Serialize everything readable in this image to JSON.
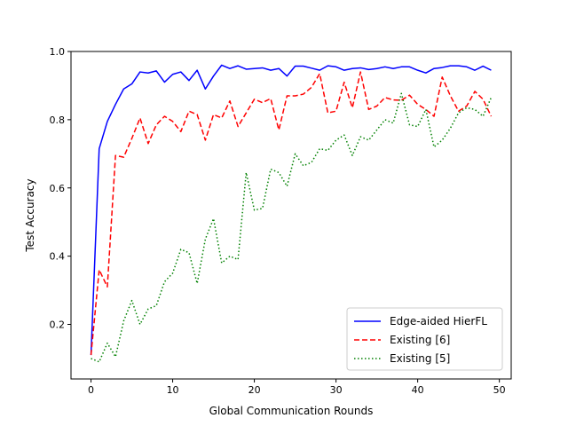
{
  "chart_data": {
    "type": "line",
    "title": "",
    "xlabel": "Global Communication Rounds",
    "ylabel": "Test Accuracy",
    "xlim": [
      -2.45,
      51.45
    ],
    "ylim": [
      0.04,
      1.0
    ],
    "xticks": [
      0,
      10,
      20,
      30,
      40,
      50
    ],
    "yticks": [
      0.2,
      0.4,
      0.6,
      0.8,
      1.0
    ],
    "xtick_labels": [
      "0",
      "10",
      "20",
      "30",
      "40",
      "50"
    ],
    "ytick_labels": [
      "0.2",
      "0.4",
      "0.6",
      "0.8",
      "1.0"
    ],
    "grid": false,
    "legend_position": "lower-right",
    "x": [
      0,
      1,
      2,
      3,
      4,
      5,
      6,
      7,
      8,
      9,
      10,
      11,
      12,
      13,
      14,
      15,
      16,
      17,
      18,
      19,
      20,
      21,
      22,
      23,
      24,
      25,
      26,
      27,
      28,
      29,
      30,
      31,
      32,
      33,
      34,
      35,
      36,
      37,
      38,
      39,
      40,
      41,
      42,
      43,
      44,
      45,
      46,
      47,
      48,
      49
    ],
    "series": [
      {
        "name": "Edge-aided HierFL",
        "color": "#0000ff",
        "style": "solid",
        "values": [
          0.11,
          0.715,
          0.795,
          0.845,
          0.89,
          0.905,
          0.94,
          0.937,
          0.943,
          0.91,
          0.933,
          0.94,
          0.915,
          0.945,
          0.89,
          0.928,
          0.96,
          0.95,
          0.958,
          0.948,
          0.95,
          0.952,
          0.945,
          0.95,
          0.928,
          0.957,
          0.957,
          0.951,
          0.945,
          0.958,
          0.955,
          0.945,
          0.95,
          0.952,
          0.947,
          0.95,
          0.955,
          0.95,
          0.955,
          0.955,
          0.945,
          0.937,
          0.95,
          0.953,
          0.958,
          0.958,
          0.955,
          0.945,
          0.957,
          0.945
        ]
      },
      {
        "name": "Existing [6]",
        "color": "#ff0000",
        "style": "dashed",
        "values": [
          0.11,
          0.36,
          0.31,
          0.695,
          0.69,
          0.745,
          0.805,
          0.73,
          0.785,
          0.81,
          0.795,
          0.765,
          0.825,
          0.815,
          0.74,
          0.815,
          0.805,
          0.855,
          0.78,
          0.82,
          0.86,
          0.85,
          0.862,
          0.77,
          0.87,
          0.87,
          0.875,
          0.895,
          0.935,
          0.82,
          0.825,
          0.91,
          0.835,
          0.94,
          0.83,
          0.84,
          0.865,
          0.858,
          0.857,
          0.872,
          0.845,
          0.83,
          0.81,
          0.925,
          0.87,
          0.825,
          0.84,
          0.883,
          0.86,
          0.81
        ]
      },
      {
        "name": "Existing [5]",
        "color": "#008000",
        "style": "dotted",
        "values": [
          0.1,
          0.09,
          0.145,
          0.105,
          0.21,
          0.27,
          0.2,
          0.245,
          0.255,
          0.325,
          0.35,
          0.42,
          0.41,
          0.32,
          0.45,
          0.51,
          0.38,
          0.4,
          0.39,
          0.645,
          0.535,
          0.54,
          0.655,
          0.645,
          0.605,
          0.7,
          0.665,
          0.675,
          0.715,
          0.71,
          0.74,
          0.755,
          0.695,
          0.75,
          0.74,
          0.77,
          0.8,
          0.79,
          0.877,
          0.785,
          0.78,
          0.83,
          0.72,
          0.74,
          0.775,
          0.82,
          0.835,
          0.83,
          0.81,
          0.865
        ]
      }
    ]
  }
}
